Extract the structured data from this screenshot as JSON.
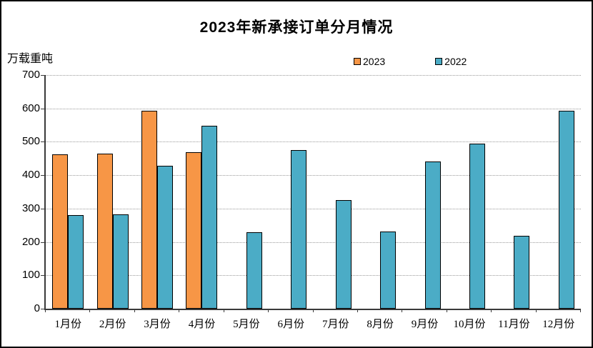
{
  "title": "2023年新承接订单分月情况",
  "y_axis_unit": "万载重吨",
  "legend": [
    {
      "label": "2023",
      "color": "#F79646"
    },
    {
      "label": "2022",
      "color": "#4BACC6"
    }
  ],
  "chart_data": {
    "type": "bar",
    "title": "2023年新承接订单分月情况",
    "ylabel": "万载重吨",
    "xlabel": "",
    "categories": [
      "1月份",
      "2月份",
      "3月份",
      "4月份",
      "5月份",
      "6月份",
      "7月份",
      "8月份",
      "9月份",
      "10月份",
      "11月份",
      "12月份"
    ],
    "series": [
      {
        "name": "2023",
        "color": "#F79646",
        "values": [
          462,
          464,
          594,
          468,
          null,
          null,
          null,
          null,
          null,
          null,
          null,
          null
        ]
      },
      {
        "name": "2022",
        "color": "#4BACC6",
        "values": [
          281,
          282,
          429,
          548,
          230,
          476,
          326,
          232,
          440,
          494,
          219,
          592
        ]
      }
    ],
    "ylim": [
      0,
      700
    ],
    "yticks": [
      0,
      100,
      200,
      300,
      400,
      500,
      600,
      700
    ],
    "grid": "horizontal-dotted",
    "legend_position": "top"
  }
}
